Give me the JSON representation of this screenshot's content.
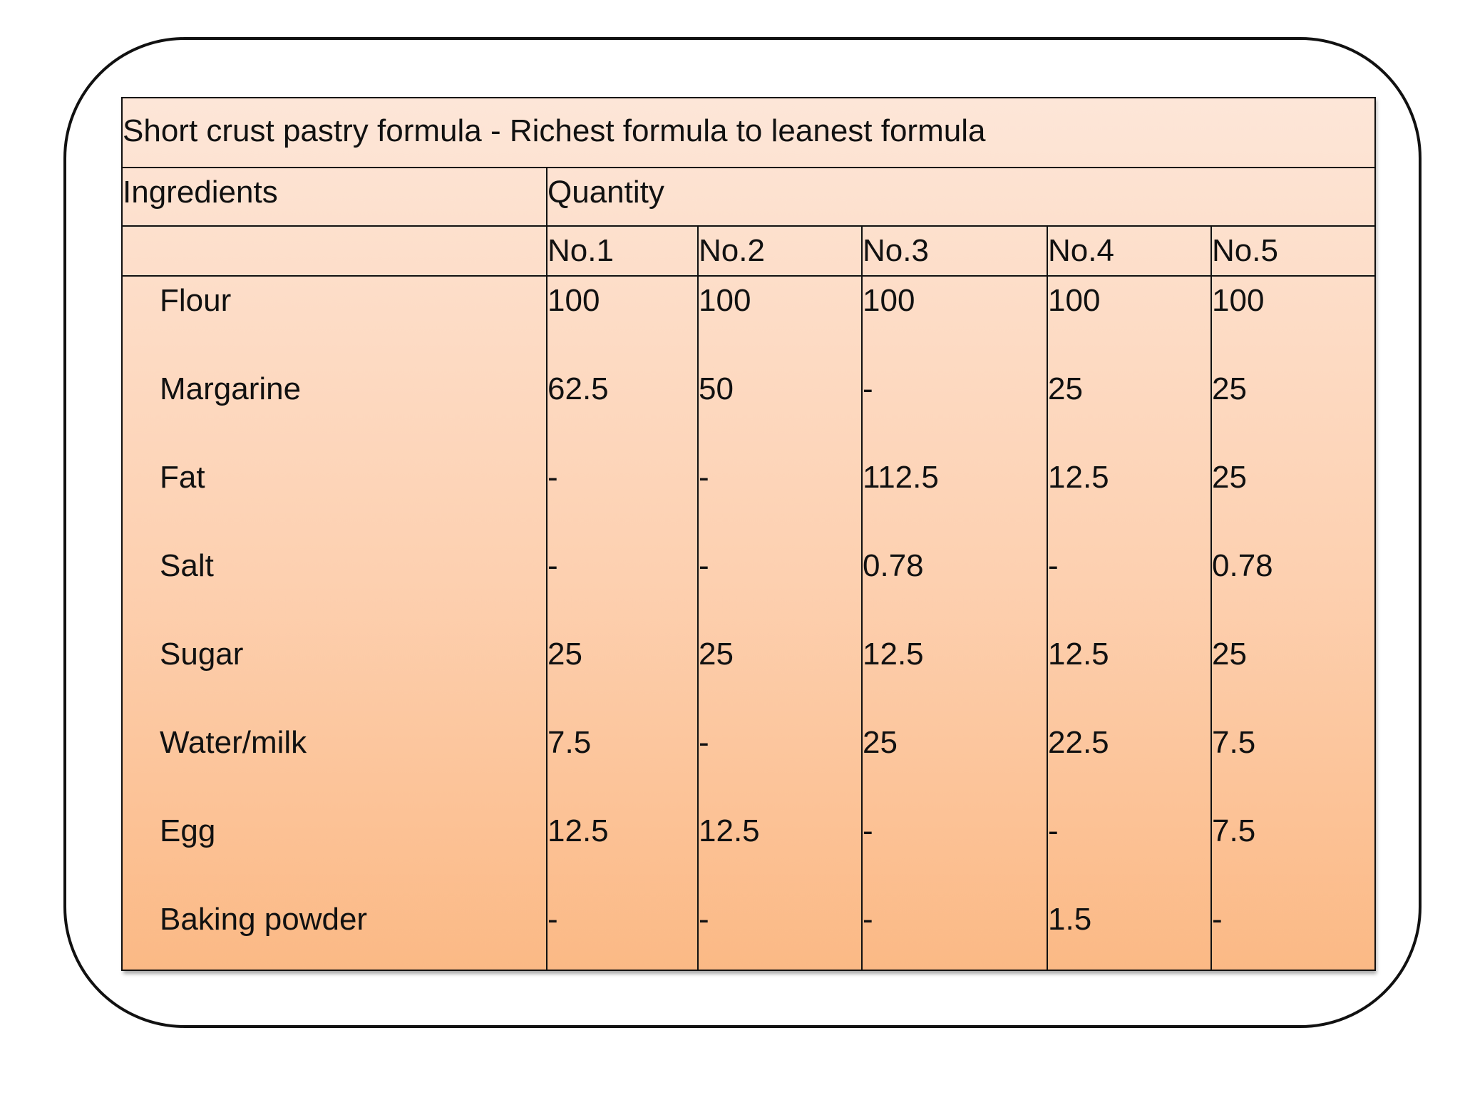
{
  "table": {
    "title": "Short crust pastry formula - Richest formula to leanest formula",
    "ingredients_header": "Ingredients",
    "quantity_header": "Quantity",
    "columns": [
      "No.1",
      "No.2",
      "No.3",
      "No.4",
      "No.5"
    ],
    "rows": [
      {
        "ingredient": "Flour",
        "values": [
          "100",
          "100",
          "100",
          "100",
          "100"
        ]
      },
      {
        "ingredient": "Margarine",
        "values": [
          "62.5",
          "50",
          "-",
          "25",
          "25"
        ]
      },
      {
        "ingredient": "Fat",
        "values": [
          "-",
          "-",
          "112.5",
          "12.5",
          "25"
        ]
      },
      {
        "ingredient": "Salt",
        "values": [
          "-",
          "-",
          "0.78",
          "-",
          "0.78"
        ]
      },
      {
        "ingredient": "Sugar",
        "values": [
          "25",
          "25",
          "12.5",
          "12.5",
          "25"
        ]
      },
      {
        "ingredient": "Water/milk",
        "values": [
          "7.5",
          "-",
          "25",
          "22.5",
          "7.5"
        ]
      },
      {
        "ingredient": "Egg",
        "values": [
          "12.5",
          "12.5",
          "-",
          "-",
          "7.5"
        ]
      },
      {
        "ingredient": "Baking powder",
        "values": [
          "-",
          "-",
          "-",
          "1.5",
          "-"
        ]
      }
    ]
  },
  "colors": {
    "gradient_top": "#fde6d8",
    "gradient_bottom": "#fbb985",
    "border": "#111111"
  }
}
